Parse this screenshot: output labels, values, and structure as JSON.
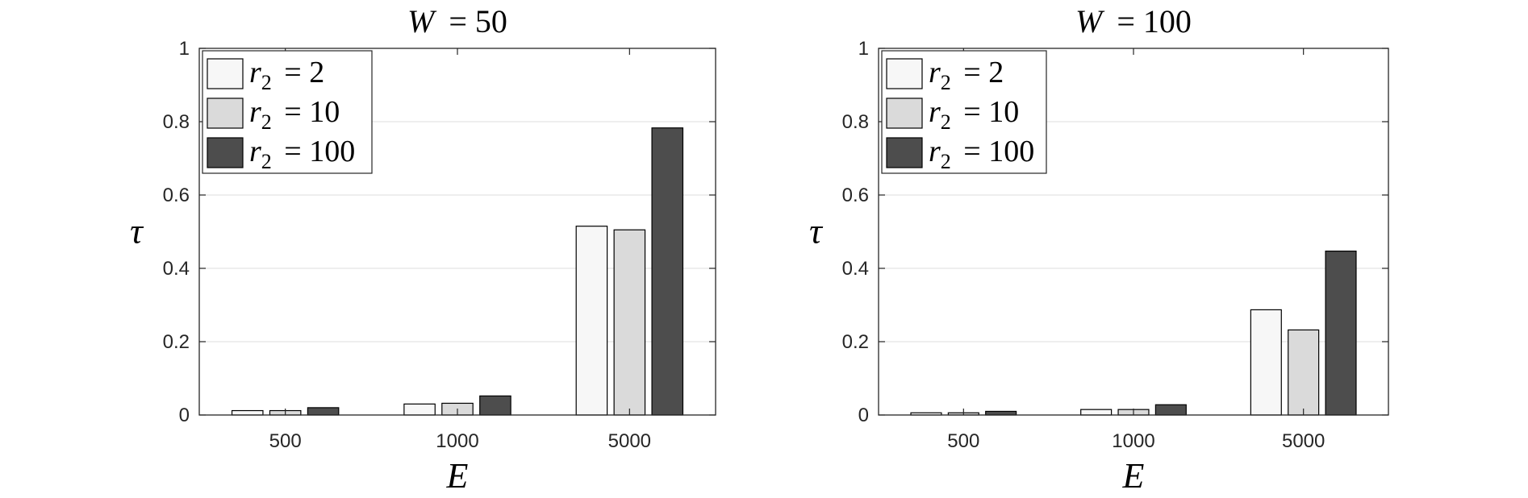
{
  "chart_data": [
    {
      "type": "bar",
      "title": "W = 50",
      "title_var": "W",
      "title_value": "= 50",
      "xlabel": "E",
      "ylabel": "τ",
      "categories": [
        "500",
        "1000",
        "5000"
      ],
      "ylim": [
        0,
        1
      ],
      "yticks": [
        "0",
        "0.2",
        "0.4",
        "0.6",
        "0.8",
        "1"
      ],
      "grid": "horizontal",
      "legend_placement": "top-left",
      "series": [
        {
          "name": "r2 = 2",
          "legend_var": "r",
          "legend_sub": "2",
          "legend_value": "= 2",
          "color": "#f7f7f7",
          "values": [
            0.012,
            0.03,
            0.515
          ]
        },
        {
          "name": "r2 = 10",
          "legend_var": "r",
          "legend_sub": "2",
          "legend_value": "= 10",
          "color": "#dadada",
          "values": [
            0.012,
            0.032,
            0.505
          ]
        },
        {
          "name": "r2 = 100",
          "legend_var": "r",
          "legend_sub": "2",
          "legend_value": "= 100",
          "color": "#4d4d4d",
          "values": [
            0.02,
            0.052,
            0.783
          ]
        }
      ]
    },
    {
      "type": "bar",
      "title": "W = 100",
      "title_var": "W",
      "title_value": "= 100",
      "xlabel": "E",
      "ylabel": "τ",
      "categories": [
        "500",
        "1000",
        "5000"
      ],
      "ylim": [
        0,
        1
      ],
      "yticks": [
        "0",
        "0.2",
        "0.4",
        "0.6",
        "0.8",
        "1"
      ],
      "grid": "horizontal",
      "legend_placement": "top-left",
      "series": [
        {
          "name": "r2 = 2",
          "legend_var": "r",
          "legend_sub": "2",
          "legend_value": "= 2",
          "color": "#f7f7f7",
          "values": [
            0.006,
            0.015,
            0.287
          ]
        },
        {
          "name": "r2 = 10",
          "legend_var": "r",
          "legend_sub": "2",
          "legend_value": "= 10",
          "color": "#dadada",
          "values": [
            0.006,
            0.015,
            0.232
          ]
        },
        {
          "name": "r2 = 100",
          "legend_var": "r",
          "legend_sub": "2",
          "legend_value": "= 100",
          "color": "#4d4d4d",
          "values": [
            0.01,
            0.028,
            0.447
          ]
        }
      ]
    }
  ],
  "colors": {
    "axis": "#262626",
    "grid": "#e3e3e3",
    "bar_edge": "#000000"
  }
}
